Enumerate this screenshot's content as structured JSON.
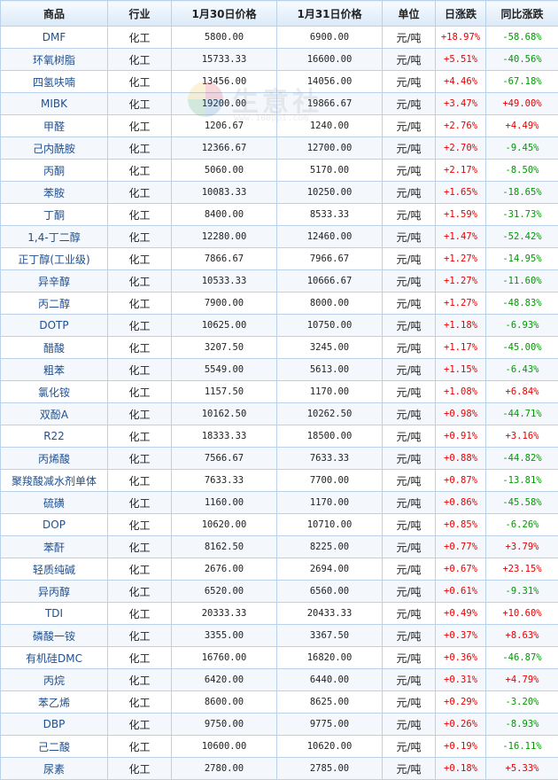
{
  "headers": {
    "product": "商品",
    "industry": "行业",
    "price_jan30": "1月30日价格",
    "price_jan31": "1月31日价格",
    "unit": "单位",
    "daily_change": "日涨跌",
    "yoy_change": "同比涨跌"
  },
  "watermark": {
    "text": "生意社",
    "url": "www.100ppi.com"
  },
  "colors": {
    "up": "#e60000",
    "down": "#009900",
    "link": "#1f4f8f",
    "border": "#b9d1ea"
  },
  "rows": [
    {
      "name": "DMF",
      "industry": "化工",
      "p1": "5800.00",
      "p2": "6900.00",
      "unit": "元/吨",
      "day": "+18.97%",
      "yoy": "-58.68%"
    },
    {
      "name": "环氧树脂",
      "industry": "化工",
      "p1": "15733.33",
      "p2": "16600.00",
      "unit": "元/吨",
      "day": "+5.51%",
      "yoy": "-40.56%"
    },
    {
      "name": "四氢呋喃",
      "industry": "化工",
      "p1": "13456.00",
      "p2": "14056.00",
      "unit": "元/吨",
      "day": "+4.46%",
      "yoy": "-67.18%"
    },
    {
      "name": "MIBK",
      "industry": "化工",
      "p1": "19200.00",
      "p2": "19866.67",
      "unit": "元/吨",
      "day": "+3.47%",
      "yoy": "+49.00%"
    },
    {
      "name": "甲醛",
      "industry": "化工",
      "p1": "1206.67",
      "p2": "1240.00",
      "unit": "元/吨",
      "day": "+2.76%",
      "yoy": "+4.49%"
    },
    {
      "name": "己内酰胺",
      "industry": "化工",
      "p1": "12366.67",
      "p2": "12700.00",
      "unit": "元/吨",
      "day": "+2.70%",
      "yoy": "-9.45%"
    },
    {
      "name": "丙酮",
      "industry": "化工",
      "p1": "5060.00",
      "p2": "5170.00",
      "unit": "元/吨",
      "day": "+2.17%",
      "yoy": "-8.50%"
    },
    {
      "name": "苯胺",
      "industry": "化工",
      "p1": "10083.33",
      "p2": "10250.00",
      "unit": "元/吨",
      "day": "+1.65%",
      "yoy": "-18.65%"
    },
    {
      "name": "丁酮",
      "industry": "化工",
      "p1": "8400.00",
      "p2": "8533.33",
      "unit": "元/吨",
      "day": "+1.59%",
      "yoy": "-31.73%"
    },
    {
      "name": "1,4-丁二醇",
      "industry": "化工",
      "p1": "12280.00",
      "p2": "12460.00",
      "unit": "元/吨",
      "day": "+1.47%",
      "yoy": "-52.42%"
    },
    {
      "name": "正丁醇(工业级)",
      "industry": "化工",
      "p1": "7866.67",
      "p2": "7966.67",
      "unit": "元/吨",
      "day": "+1.27%",
      "yoy": "-14.95%"
    },
    {
      "name": "异辛醇",
      "industry": "化工",
      "p1": "10533.33",
      "p2": "10666.67",
      "unit": "元/吨",
      "day": "+1.27%",
      "yoy": "-11.60%"
    },
    {
      "name": "丙二醇",
      "industry": "化工",
      "p1": "7900.00",
      "p2": "8000.00",
      "unit": "元/吨",
      "day": "+1.27%",
      "yoy": "-48.83%"
    },
    {
      "name": "DOTP",
      "industry": "化工",
      "p1": "10625.00",
      "p2": "10750.00",
      "unit": "元/吨",
      "day": "+1.18%",
      "yoy": "-6.93%"
    },
    {
      "name": "醋酸",
      "industry": "化工",
      "p1": "3207.50",
      "p2": "3245.00",
      "unit": "元/吨",
      "day": "+1.17%",
      "yoy": "-45.00%"
    },
    {
      "name": "粗苯",
      "industry": "化工",
      "p1": "5549.00",
      "p2": "5613.00",
      "unit": "元/吨",
      "day": "+1.15%",
      "yoy": "-6.43%"
    },
    {
      "name": "氯化铵",
      "industry": "化工",
      "p1": "1157.50",
      "p2": "1170.00",
      "unit": "元/吨",
      "day": "+1.08%",
      "yoy": "+6.84%"
    },
    {
      "name": "双酚A",
      "industry": "化工",
      "p1": "10162.50",
      "p2": "10262.50",
      "unit": "元/吨",
      "day": "+0.98%",
      "yoy": "-44.71%"
    },
    {
      "name": "R22",
      "industry": "化工",
      "p1": "18333.33",
      "p2": "18500.00",
      "unit": "元/吨",
      "day": "+0.91%",
      "yoy": "+3.16%"
    },
    {
      "name": "丙烯酸",
      "industry": "化工",
      "p1": "7566.67",
      "p2": "7633.33",
      "unit": "元/吨",
      "day": "+0.88%",
      "yoy": "-44.82%"
    },
    {
      "name": "聚羧酸减水剂单体",
      "industry": "化工",
      "p1": "7633.33",
      "p2": "7700.00",
      "unit": "元/吨",
      "day": "+0.87%",
      "yoy": "-13.81%"
    },
    {
      "name": "硫磺",
      "industry": "化工",
      "p1": "1160.00",
      "p2": "1170.00",
      "unit": "元/吨",
      "day": "+0.86%",
      "yoy": "-45.58%"
    },
    {
      "name": "DOP",
      "industry": "化工",
      "p1": "10620.00",
      "p2": "10710.00",
      "unit": "元/吨",
      "day": "+0.85%",
      "yoy": "-6.26%"
    },
    {
      "name": "苯酐",
      "industry": "化工",
      "p1": "8162.50",
      "p2": "8225.00",
      "unit": "元/吨",
      "day": "+0.77%",
      "yoy": "+3.79%"
    },
    {
      "name": "轻质纯碱",
      "industry": "化工",
      "p1": "2676.00",
      "p2": "2694.00",
      "unit": "元/吨",
      "day": "+0.67%",
      "yoy": "+23.15%"
    },
    {
      "name": "异丙醇",
      "industry": "化工",
      "p1": "6520.00",
      "p2": "6560.00",
      "unit": "元/吨",
      "day": "+0.61%",
      "yoy": "-9.31%"
    },
    {
      "name": "TDI",
      "industry": "化工",
      "p1": "20333.33",
      "p2": "20433.33",
      "unit": "元/吨",
      "day": "+0.49%",
      "yoy": "+10.60%"
    },
    {
      "name": "磷酸一铵",
      "industry": "化工",
      "p1": "3355.00",
      "p2": "3367.50",
      "unit": "元/吨",
      "day": "+0.37%",
      "yoy": "+8.63%"
    },
    {
      "name": "有机硅DMC",
      "industry": "化工",
      "p1": "16760.00",
      "p2": "16820.00",
      "unit": "元/吨",
      "day": "+0.36%",
      "yoy": "-46.87%"
    },
    {
      "name": "丙烷",
      "industry": "化工",
      "p1": "6420.00",
      "p2": "6440.00",
      "unit": "元/吨",
      "day": "+0.31%",
      "yoy": "+4.79%"
    },
    {
      "name": "苯乙烯",
      "industry": "化工",
      "p1": "8600.00",
      "p2": "8625.00",
      "unit": "元/吨",
      "day": "+0.29%",
      "yoy": "-3.20%"
    },
    {
      "name": "DBP",
      "industry": "化工",
      "p1": "9750.00",
      "p2": "9775.00",
      "unit": "元/吨",
      "day": "+0.26%",
      "yoy": "-8.93%"
    },
    {
      "name": "己二酸",
      "industry": "化工",
      "p1": "10600.00",
      "p2": "10620.00",
      "unit": "元/吨",
      "day": "+0.19%",
      "yoy": "-16.11%"
    },
    {
      "name": "尿素",
      "industry": "化工",
      "p1": "2780.00",
      "p2": "2785.00",
      "unit": "元/吨",
      "day": "+0.18%",
      "yoy": "+5.33%"
    }
  ]
}
